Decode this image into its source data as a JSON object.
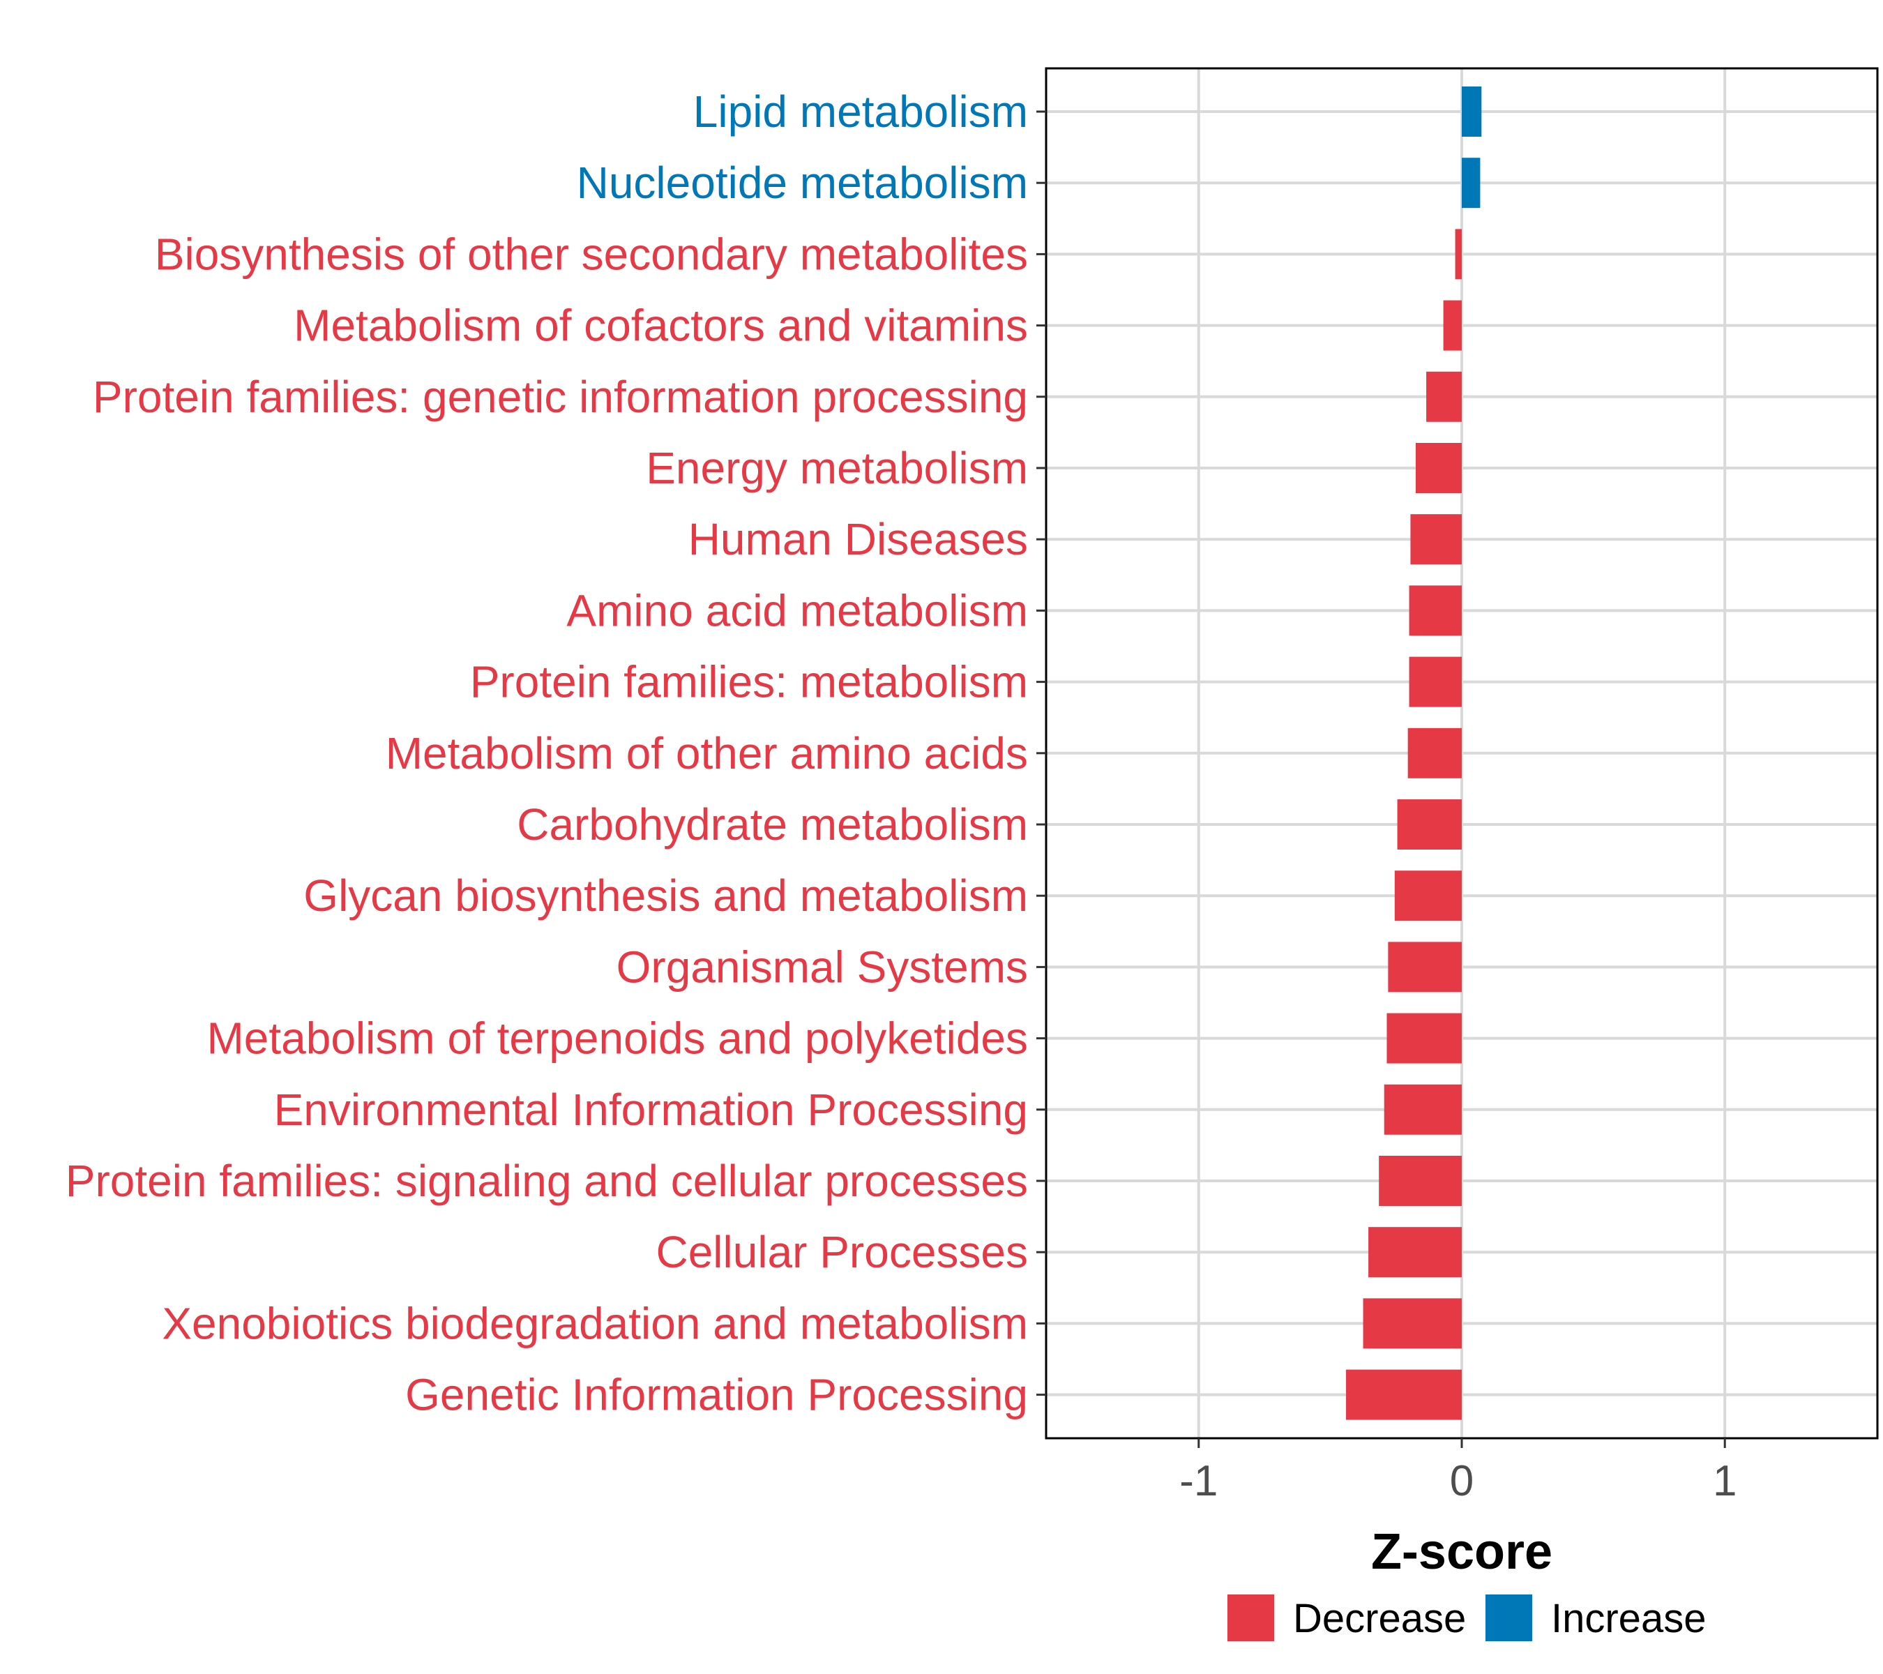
{
  "chart_data": {
    "type": "bar",
    "orientation": "horizontal",
    "title": "",
    "xlabel": "Z-score",
    "ylabel": "",
    "xlim": [
      -1.58,
      1.58
    ],
    "xticks": [
      -1,
      0,
      1
    ],
    "xtick_labels": [
      "-1",
      "0",
      "1"
    ],
    "grid": true,
    "legend_position": "bottom",
    "categories": [
      "Lipid metabolism",
      "Nucleotide metabolism",
      "Biosynthesis of other secondary metabolites",
      "Metabolism of cofactors and vitamins",
      "Protein families: genetic information processing",
      "Energy metabolism",
      "Human Diseases",
      "Amino acid metabolism",
      "Protein families: metabolism",
      "Metabolism of other amino acids",
      "Carbohydrate metabolism",
      "Glycan biosynthesis and metabolism",
      "Organismal Systems",
      "Metabolism of terpenoids and polyketides",
      "Environmental Information Processing",
      "Protein families: signaling and cellular processes",
      "Cellular Processes",
      "Xenobiotics biodegradation and metabolism",
      "Genetic Information Processing"
    ],
    "values": [
      0.075,
      0.07,
      -0.025,
      -0.07,
      -0.135,
      -0.175,
      -0.195,
      -0.2,
      -0.2,
      -0.205,
      -0.245,
      -0.255,
      -0.28,
      -0.285,
      -0.295,
      -0.315,
      -0.355,
      -0.375,
      -0.44
    ],
    "groups": [
      "Increase",
      "Increase",
      "Decrease",
      "Decrease",
      "Decrease",
      "Decrease",
      "Decrease",
      "Decrease",
      "Decrease",
      "Decrease",
      "Decrease",
      "Decrease",
      "Decrease",
      "Decrease",
      "Decrease",
      "Decrease",
      "Decrease",
      "Decrease",
      "Decrease"
    ],
    "legend": [
      {
        "name": "Decrease",
        "color": "#e63946"
      },
      {
        "name": "Increase",
        "color": "#0077b6"
      }
    ]
  }
}
